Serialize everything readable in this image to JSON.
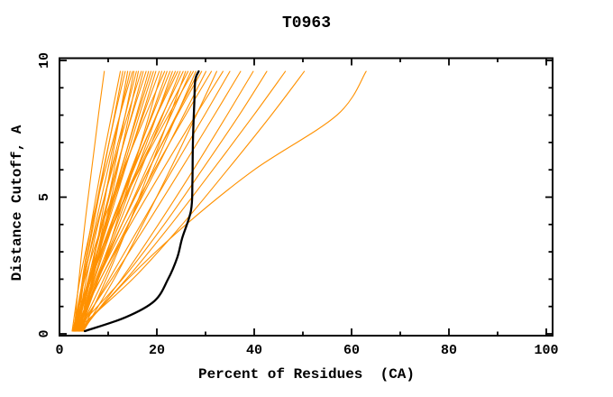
{
  "chart_data": {
    "type": "line",
    "title": "T0963",
    "xlabel": "Percent of Residues  (CA)",
    "ylabel": "Distance Cutoff, A",
    "xlim": [
      0,
      101.3
    ],
    "ylim": [
      -0.07,
      10.15
    ],
    "grid": false,
    "legend": "none",
    "x_major_ticks": [
      0,
      20,
      40,
      60,
      80,
      100
    ],
    "x_minor_ticks": [
      10,
      30,
      50,
      70,
      90
    ],
    "y_major_ticks": [
      0,
      5,
      10
    ],
    "y_minor_ticks": [
      1,
      2,
      3,
      4,
      6,
      7,
      8,
      9
    ],
    "x_tick_labels": [
      "0",
      "20",
      "40",
      "60",
      "80",
      "100"
    ],
    "y_tick_labels": [
      "0",
      "5",
      "10"
    ],
    "model_color": "#ff9100",
    "reference_color": "#000000",
    "background_color": "#ffffff",
    "cutoffs": [
      0.1,
      2,
      4,
      6,
      8,
      9.6
    ],
    "models": [
      [
        3.0,
        4.0,
        5.2,
        6.6,
        8.0,
        9.2
      ],
      [
        3.4,
        4.7,
        6.5,
        8.5,
        10.7,
        12.5
      ],
      [
        2.8,
        4.8,
        7.0,
        9.1,
        11.3,
        13.0
      ],
      [
        3.8,
        5.0,
        6.8,
        9.0,
        11.4,
        13.5
      ],
      [
        4.2,
        6.3,
        8.4,
        10.4,
        12.4,
        14.0
      ],
      [
        3.2,
        5.1,
        7.4,
        9.9,
        12.4,
        14.5
      ],
      [
        2.6,
        4.2,
        6.6,
        9.4,
        12.4,
        15.0
      ],
      [
        4.6,
        6.7,
        9.0,
        11.2,
        13.5,
        15.3
      ],
      [
        3.6,
        5.5,
        7.9,
        10.6,
        13.5,
        15.8
      ],
      [
        4.0,
        6.8,
        9.4,
        11.9,
        14.3,
        16.2
      ],
      [
        3.0,
        5.0,
        7.7,
        10.8,
        14.0,
        16.8
      ],
      [
        3.4,
        5.9,
        8.8,
        11.7,
        14.8,
        17.2
      ],
      [
        4.4,
        6.0,
        8.6,
        11.6,
        14.9,
        17.8
      ],
      [
        2.9,
        6.2,
        9.5,
        12.7,
        15.8,
        18.3
      ],
      [
        3.7,
        6.2,
        9.3,
        12.6,
        16.0,
        18.8
      ],
      [
        4.8,
        6.9,
        9.7,
        13.0,
        16.4,
        19.3
      ],
      [
        3.1,
        6.4,
        9.9,
        13.4,
        17.0,
        19.8
      ],
      [
        3.5,
        6.1,
        9.5,
        13.3,
        17.2,
        20.5
      ],
      [
        4.1,
        8.0,
        11.6,
        15.1,
        18.4,
        21.0
      ],
      [
        2.7,
        5.2,
        8.8,
        13.1,
        17.7,
        21.6
      ],
      [
        3.9,
        7.2,
        11.0,
        14.9,
        18.9,
        22.1
      ],
      [
        4.5,
        7.1,
        10.7,
        14.7,
        19.1,
        22.7
      ],
      [
        3.3,
        7.5,
        11.8,
        15.9,
        20.0,
        23.2
      ],
      [
        2.8,
        6.3,
        10.6,
        15.2,
        19.9,
        23.8
      ],
      [
        4.3,
        6.7,
        10.5,
        15.0,
        20.0,
        24.3
      ],
      [
        3.6,
        7.8,
        12.2,
        16.7,
        21.2,
        24.8
      ],
      [
        3.0,
        6.5,
        11.0,
        15.9,
        21.1,
        25.4
      ],
      [
        4.7,
        9.6,
        14.2,
        18.5,
        22.7,
        25.9
      ],
      [
        3.2,
        6.5,
        11.1,
        16.2,
        21.8,
        26.4
      ],
      [
        3.8,
        8.0,
        12.8,
        17.8,
        22.9,
        27.0
      ],
      [
        2.9,
        6.1,
        10.9,
        16.4,
        22.4,
        27.5
      ],
      [
        4.0,
        9.1,
        14.2,
        19.2,
        24.1,
        28.0
      ],
      [
        3.4,
        7.6,
        12.8,
        18.3,
        24.0,
        28.6
      ],
      [
        4.4,
        7.9,
        12.8,
        18.3,
        24.2,
        29.2
      ],
      [
        3.1,
        8.4,
        14.1,
        19.8,
        25.5,
        30.1
      ],
      [
        3.7,
        7.9,
        13.5,
        19.5,
        25.9,
        31.2
      ],
      [
        4.9,
        11.2,
        17.1,
        22.7,
        28.1,
        32.3
      ],
      [
        3.3,
        8.4,
        14.6,
        21.2,
        28.0,
        33.6
      ],
      [
        4.1,
        10.2,
        16.7,
        23.2,
        29.8,
        35.0
      ],
      [
        3.5,
        10.7,
        17.9,
        24.9,
        31.8,
        37.2
      ],
      [
        4.6,
        12.7,
        20.3,
        27.5,
        34.4,
        39.8
      ],
      [
        3.0,
        12.9,
        21.5,
        29.3,
        36.9,
        42.6
      ],
      [
        3.9,
        13.7,
        22.9,
        31.5,
        39.9,
        46.4
      ],
      [
        3.2,
        15.0,
        25.2,
        34.5,
        43.5,
        50.3
      ],
      [
        4.2,
        14.0,
        26.0,
        40.0,
        57.0,
        63.0
      ]
    ],
    "reference_model": {
      "cutoffs": [
        0.1,
        0.6,
        1.2,
        2.0,
        2.8,
        3.5,
        4.5,
        5.5,
        7.0,
        8.5,
        9.3,
        9.6
      ],
      "percents": [
        5.2,
        13.5,
        19.5,
        22.3,
        24.2,
        25.2,
        27.0,
        27.3,
        27.4,
        27.7,
        27.9,
        28.6
      ]
    }
  }
}
